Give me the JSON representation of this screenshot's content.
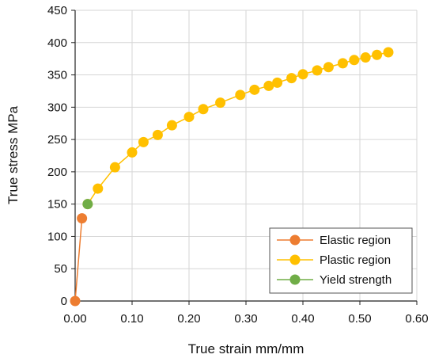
{
  "chart_data": {
    "type": "scatter",
    "xlabel": "True strain mm/mm",
    "ylabel": "True stress MPa",
    "xlim": [
      0,
      0.6
    ],
    "ylim": [
      0,
      450
    ],
    "xticks": [
      "0.00",
      "0.10",
      "0.20",
      "0.30",
      "0.40",
      "0.50",
      "0.60"
    ],
    "yticks": [
      "0",
      "50",
      "100",
      "150",
      "200",
      "250",
      "300",
      "350",
      "400",
      "450"
    ],
    "grid": true,
    "legend_position": "bottom-right",
    "series": [
      {
        "name": "Elastic region",
        "color": "#ED7D31",
        "x": [
          0.0,
          0.012
        ],
        "y": [
          0,
          128
        ]
      },
      {
        "name": "Plastic region",
        "color": "#FFC000",
        "x": [
          0.022,
          0.04,
          0.07,
          0.1,
          0.12,
          0.145,
          0.17,
          0.2,
          0.225,
          0.255,
          0.29,
          0.315,
          0.34,
          0.355,
          0.38,
          0.4,
          0.425,
          0.445,
          0.47,
          0.49,
          0.51,
          0.53,
          0.55
        ],
        "y": [
          150,
          174,
          207,
          230,
          246,
          257,
          272,
          285,
          297,
          307,
          319,
          327,
          333,
          338,
          345,
          351,
          357,
          362,
          368,
          373,
          377,
          381,
          385
        ]
      },
      {
        "name": "Yield strength",
        "color": "#70AD47",
        "x": [
          0.022
        ],
        "y": [
          150
        ]
      }
    ]
  }
}
